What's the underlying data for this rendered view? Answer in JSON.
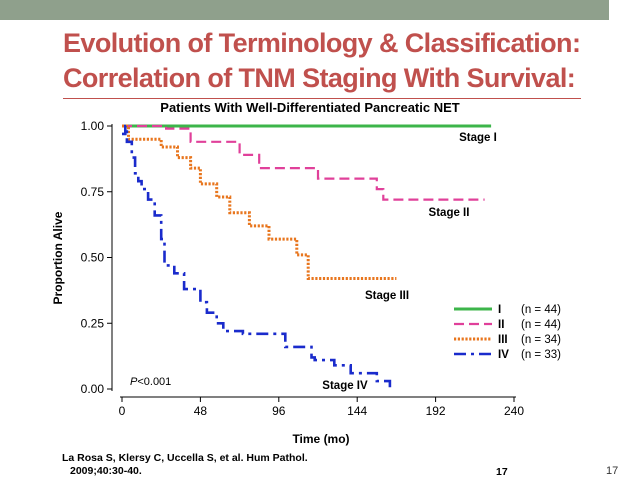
{
  "theme": {
    "background": "#ffffff",
    "band": "#8fa08c",
    "accent": "#c0504d"
  },
  "slide": {
    "title_line1": "Evolution of Terminology & Classification:",
    "title_line2": "Correlation of TNM Staging With Survival:",
    "citation_line1": "La Rosa S, Klersy C, Uccella S, et al. Hum Pathol.",
    "citation_line2": "2009;40:30-40.",
    "page_inner": "17",
    "page_outer": "17"
  },
  "chart_data": {
    "type": "line",
    "subtype": "kaplan-meier-step",
    "title": "Patients With Well-Differentiated Pancreatic NET",
    "xlabel": "Time (mo)",
    "ylabel": "Proportion Alive",
    "xlim": [
      0,
      240
    ],
    "ylim": [
      0,
      1
    ],
    "xticks": [
      0,
      48,
      96,
      144,
      192,
      240
    ],
    "ytick_values": [
      0,
      0.25,
      0.5,
      0.75,
      1
    ],
    "ytick_labels": [
      "0.00",
      "0.25",
      "0.50",
      "0.75",
      "1.00"
    ],
    "grid": false,
    "legend_position": "bottom-right",
    "pvalue": "P<0.001",
    "series": [
      {
        "name": "I",
        "n": "(n = 44)",
        "label": "Stage I",
        "color": "#3cb54a",
        "dash": "solid",
        "points": [
          [
            0,
            1.0
          ],
          [
            226,
            1.0
          ]
        ]
      },
      {
        "name": "II",
        "n": "(n = 44)",
        "label": "Stage II",
        "color": "#e0409a",
        "dash": "dashed",
        "points": [
          [
            0,
            1.0
          ],
          [
            27,
            1.0
          ],
          [
            27,
            0.99
          ],
          [
            42,
            0.99
          ],
          [
            42,
            0.94
          ],
          [
            72,
            0.94
          ],
          [
            72,
            0.89
          ],
          [
            84,
            0.89
          ],
          [
            84,
            0.84
          ],
          [
            120,
            0.84
          ],
          [
            120,
            0.8
          ],
          [
            156,
            0.8
          ],
          [
            156,
            0.76
          ],
          [
            160,
            0.76
          ],
          [
            160,
            0.72
          ],
          [
            222,
            0.72
          ]
        ]
      },
      {
        "name": "III",
        "n": "(n = 34)",
        "label": "Stage III",
        "color": "#e8761e",
        "dash": "dotted",
        "points": [
          [
            0,
            1.0
          ],
          [
            4,
            1.0
          ],
          [
            4,
            0.95
          ],
          [
            24,
            0.95
          ],
          [
            24,
            0.92
          ],
          [
            34,
            0.92
          ],
          [
            34,
            0.88
          ],
          [
            42,
            0.88
          ],
          [
            42,
            0.84
          ],
          [
            48,
            0.84
          ],
          [
            48,
            0.78
          ],
          [
            58,
            0.78
          ],
          [
            58,
            0.73
          ],
          [
            66,
            0.73
          ],
          [
            66,
            0.67
          ],
          [
            78,
            0.67
          ],
          [
            78,
            0.62
          ],
          [
            90,
            0.62
          ],
          [
            90,
            0.57
          ],
          [
            107,
            0.57
          ],
          [
            107,
            0.51
          ],
          [
            114,
            0.51
          ],
          [
            114,
            0.42
          ],
          [
            168,
            0.42
          ]
        ]
      },
      {
        "name": "IV",
        "n": "(n = 33)",
        "label": "Stage IV",
        "color": "#1a2bcc",
        "dash": "dash-dot",
        "points": [
          [
            0,
            0.97
          ],
          [
            2,
            0.97
          ],
          [
            2,
            1.0
          ],
          [
            3,
            1.0
          ],
          [
            3,
            0.94
          ],
          [
            6,
            0.94
          ],
          [
            6,
            0.88
          ],
          [
            8,
            0.88
          ],
          [
            8,
            0.82
          ],
          [
            10,
            0.82
          ],
          [
            10,
            0.79
          ],
          [
            12,
            0.79
          ],
          [
            12,
            0.76
          ],
          [
            16,
            0.76
          ],
          [
            16,
            0.72
          ],
          [
            20,
            0.72
          ],
          [
            20,
            0.66
          ],
          [
            24,
            0.66
          ],
          [
            24,
            0.57
          ],
          [
            26,
            0.57
          ],
          [
            26,
            0.47
          ],
          [
            32,
            0.47
          ],
          [
            32,
            0.44
          ],
          [
            38,
            0.44
          ],
          [
            38,
            0.38
          ],
          [
            48,
            0.38
          ],
          [
            48,
            0.33
          ],
          [
            52,
            0.33
          ],
          [
            52,
            0.29
          ],
          [
            58,
            0.29
          ],
          [
            58,
            0.25
          ],
          [
            62,
            0.25
          ],
          [
            62,
            0.22
          ],
          [
            74,
            0.22
          ],
          [
            74,
            0.21
          ],
          [
            100,
            0.21
          ],
          [
            100,
            0.16
          ],
          [
            116,
            0.16
          ],
          [
            116,
            0.12
          ],
          [
            118,
            0.12
          ],
          [
            118,
            0.11
          ],
          [
            130,
            0.11
          ],
          [
            130,
            0.09
          ],
          [
            140,
            0.09
          ],
          [
            140,
            0.06
          ],
          [
            156,
            0.06
          ],
          [
            156,
            0.03
          ],
          [
            164,
            0.03
          ],
          [
            164,
            0.0
          ]
        ]
      }
    ]
  }
}
